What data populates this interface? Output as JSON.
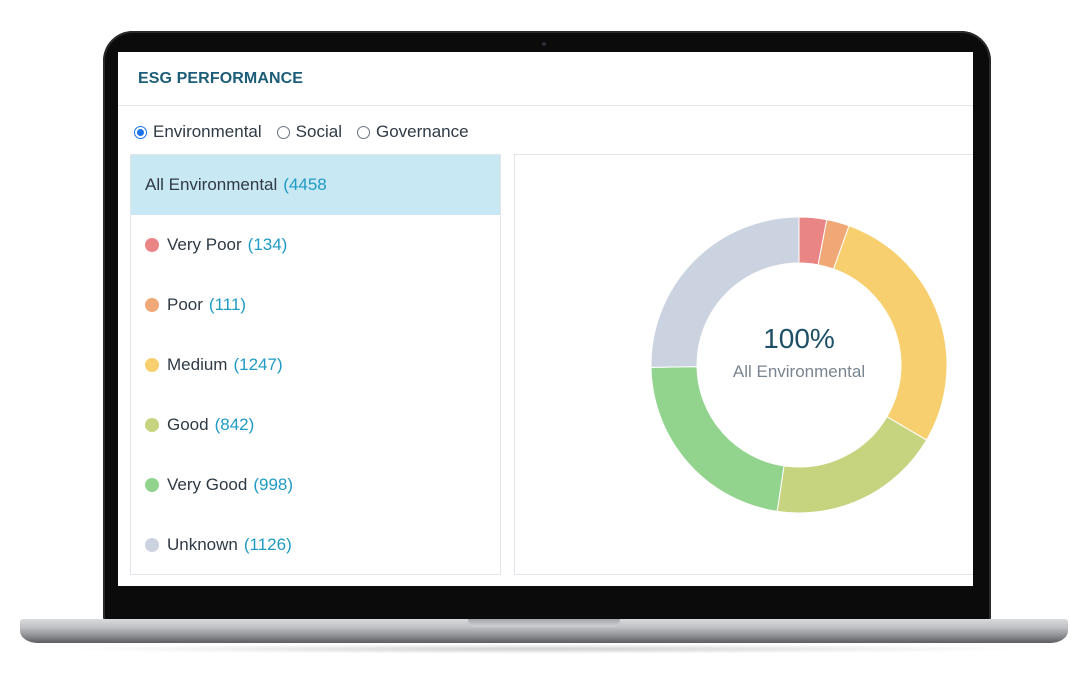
{
  "header": {
    "title": "ESG PERFORMANCE"
  },
  "tabs": [
    {
      "label": "Environmental",
      "selected": true
    },
    {
      "label": "Social",
      "selected": false
    },
    {
      "label": "Governance",
      "selected": false
    }
  ],
  "list": {
    "all": {
      "label": "All Environmental",
      "count": "(4458"
    },
    "items": [
      {
        "label": "Very Poor",
        "count": "(134)",
        "color": "#e98585"
      },
      {
        "label": "Poor",
        "count": "(111)",
        "color": "#f0a877"
      },
      {
        "label": "Medium",
        "count": "(1247)",
        "color": "#f7cf6e"
      },
      {
        "label": "Good",
        "count": "(842)",
        "color": "#c6d47f"
      },
      {
        "label": "Very Good",
        "count": "(998)",
        "color": "#92d48e"
      },
      {
        "label": "Unknown",
        "count": "(1126)",
        "color": "#cbd3e0"
      }
    ]
  },
  "chart_data": {
    "type": "pie",
    "categories": [
      "Very Poor",
      "Poor",
      "Medium",
      "Good",
      "Very Good",
      "Unknown"
    ],
    "values": [
      134,
      111,
      1247,
      842,
      998,
      1126
    ],
    "colors": [
      "#e98585",
      "#f0a877",
      "#f7cf6e",
      "#c6d47f",
      "#92d48e",
      "#cbd3e0"
    ],
    "center_value": "100%",
    "center_label": "All Environmental"
  }
}
